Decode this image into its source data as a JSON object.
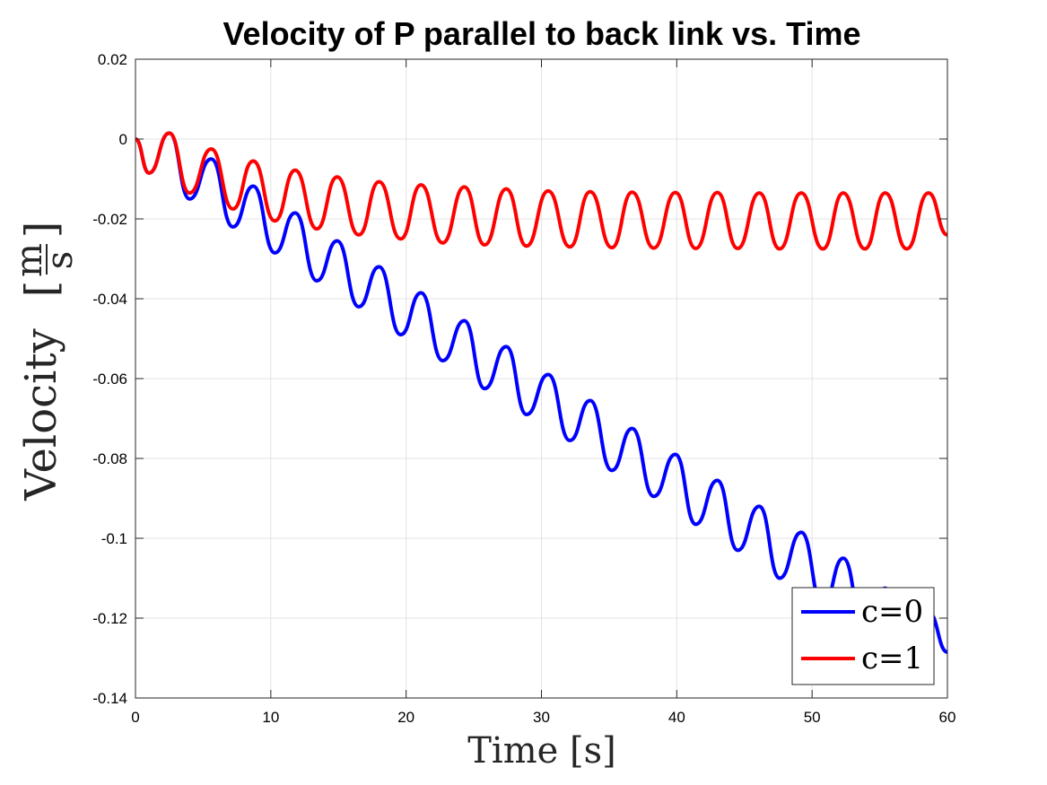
{
  "chart_data": {
    "type": "line",
    "title": "Velocity of P parallel to back link vs. Time",
    "xlabel": "Time [s]",
    "ylabel": "Velocity",
    "ylabel_unit_num": "m",
    "ylabel_unit_den": "s",
    "xlim": [
      0,
      60
    ],
    "ylim": [
      -0.14,
      0.02
    ],
    "xticks": [
      0,
      10,
      20,
      30,
      40,
      50,
      60
    ],
    "yticks": [
      0.02,
      0,
      -0.02,
      -0.04,
      -0.06,
      -0.08,
      -0.1,
      -0.12,
      -0.14
    ],
    "xtick_labels": [
      "0",
      "10",
      "20",
      "30",
      "40",
      "50",
      "60"
    ],
    "ytick_labels": [
      "0.02",
      "0",
      "-0.02",
      "-0.04",
      "-0.06",
      "-0.08",
      "-0.1",
      "-0.12",
      "-0.14"
    ],
    "grid": true,
    "legend_position": "bottom-right",
    "series": [
      {
        "name": "c=0",
        "color": "#0000ff",
        "x": [
          0,
          1,
          2.5,
          4,
          5.6,
          7.2,
          8.7,
          10.3,
          11.8,
          13.4,
          14.9,
          16.5,
          18.0,
          19.6,
          21.1,
          22.7,
          24.3,
          25.8,
          27.4,
          28.9,
          30.5,
          32.1,
          33.6,
          35.2,
          36.7,
          38.3,
          39.9,
          41.4,
          43.0,
          44.5,
          46.1,
          47.6,
          49.2,
          50.8,
          52.3,
          53.9,
          55.4,
          57.0,
          58.6,
          60
        ],
        "y": [
          0,
          -0.0085,
          0.0015,
          -0.015,
          -0.005,
          -0.022,
          -0.0118,
          -0.0285,
          -0.0185,
          -0.0355,
          -0.0255,
          -0.042,
          -0.032,
          -0.049,
          -0.0385,
          -0.0555,
          -0.0455,
          -0.0625,
          -0.052,
          -0.069,
          -0.059,
          -0.0755,
          -0.0655,
          -0.083,
          -0.0725,
          -0.0895,
          -0.079,
          -0.0965,
          -0.0855,
          -0.103,
          -0.092,
          -0.11,
          -0.0985,
          -0.117,
          -0.105,
          -0.124,
          -0.1125,
          -0.13,
          -0.1185,
          -0.1285
        ]
      },
      {
        "name": "c=1",
        "color": "#ff0000",
        "x": [
          0,
          1,
          2.5,
          4,
          5.6,
          7.2,
          8.7,
          10.3,
          11.8,
          13.4,
          14.9,
          16.5,
          18.0,
          19.6,
          21.1,
          22.7,
          24.3,
          25.8,
          27.4,
          28.9,
          30.5,
          32.1,
          33.6,
          35.2,
          36.7,
          38.3,
          39.9,
          41.4,
          43.0,
          44.5,
          46.1,
          47.6,
          49.2,
          50.8,
          52.3,
          53.9,
          55.4,
          57.0,
          58.6,
          60
        ],
        "y": [
          0,
          -0.0085,
          0.0015,
          -0.0135,
          -0.0025,
          -0.0175,
          -0.0055,
          -0.0205,
          -0.0078,
          -0.0225,
          -0.0095,
          -0.024,
          -0.0107,
          -0.025,
          -0.0115,
          -0.026,
          -0.012,
          -0.0265,
          -0.0125,
          -0.0268,
          -0.013,
          -0.027,
          -0.0132,
          -0.0272,
          -0.0133,
          -0.0273,
          -0.0134,
          -0.0274,
          -0.0134,
          -0.0274,
          -0.0135,
          -0.0275,
          -0.0135,
          -0.0275,
          -0.0135,
          -0.0275,
          -0.0135,
          -0.0275,
          -0.0135,
          -0.024
        ]
      }
    ]
  }
}
